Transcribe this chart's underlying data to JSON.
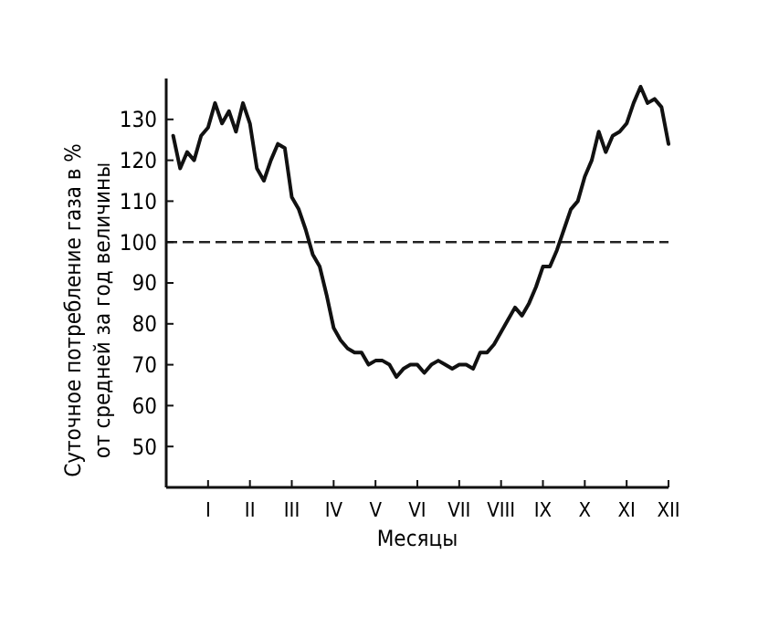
{
  "chart_data": {
    "type": "line",
    "xlabel": "Месяцы",
    "ylabel": "Суточное потребление газа в %\nот средней за год величины",
    "categories": [
      null,
      null,
      null,
      null,
      null,
      "I",
      null,
      null,
      null,
      null,
      null,
      "II",
      null,
      null,
      null,
      null,
      null,
      "III",
      null,
      null,
      null,
      null,
      null,
      "IV",
      null,
      null,
      null,
      null,
      null,
      "V",
      null,
      null,
      null,
      null,
      null,
      "VI",
      null,
      null,
      null,
      null,
      null,
      "VII",
      null,
      null,
      null,
      null,
      null,
      "VIII",
      null,
      null,
      null,
      null,
      null,
      "IX",
      null,
      null,
      null,
      null,
      null,
      "X",
      null,
      null,
      null,
      null,
      null,
      "XI",
      null,
      null,
      null,
      null,
      null,
      "XII"
    ],
    "ylim": [
      40,
      140
    ],
    "yticks": [
      50,
      60,
      70,
      80,
      90,
      100,
      110,
      120,
      130
    ],
    "series": [
      {
        "color": "#111111",
        "values": [
          126,
          118,
          122,
          120,
          126,
          128,
          134,
          129,
          132,
          127,
          134,
          129,
          118,
          115,
          120,
          124,
          123,
          111,
          108,
          103,
          97,
          94,
          87,
          79,
          76,
          74,
          73,
          73,
          70,
          71,
          71,
          70,
          67,
          69,
          70,
          70,
          68,
          70,
          71,
          70,
          69,
          70,
          70,
          69,
          73,
          73,
          75,
          78,
          81,
          84,
          82,
          85,
          89,
          94,
          94,
          98,
          103,
          108,
          110,
          116,
          120,
          127,
          122,
          126,
          127,
          129,
          134,
          138,
          134,
          135,
          133,
          124
        ]
      }
    ],
    "ref_lines": [
      {
        "axis": "y",
        "value": 100,
        "line_style": "dashed"
      }
    ],
    "grid": false,
    "marker": "none",
    "line_style": "solid"
  }
}
